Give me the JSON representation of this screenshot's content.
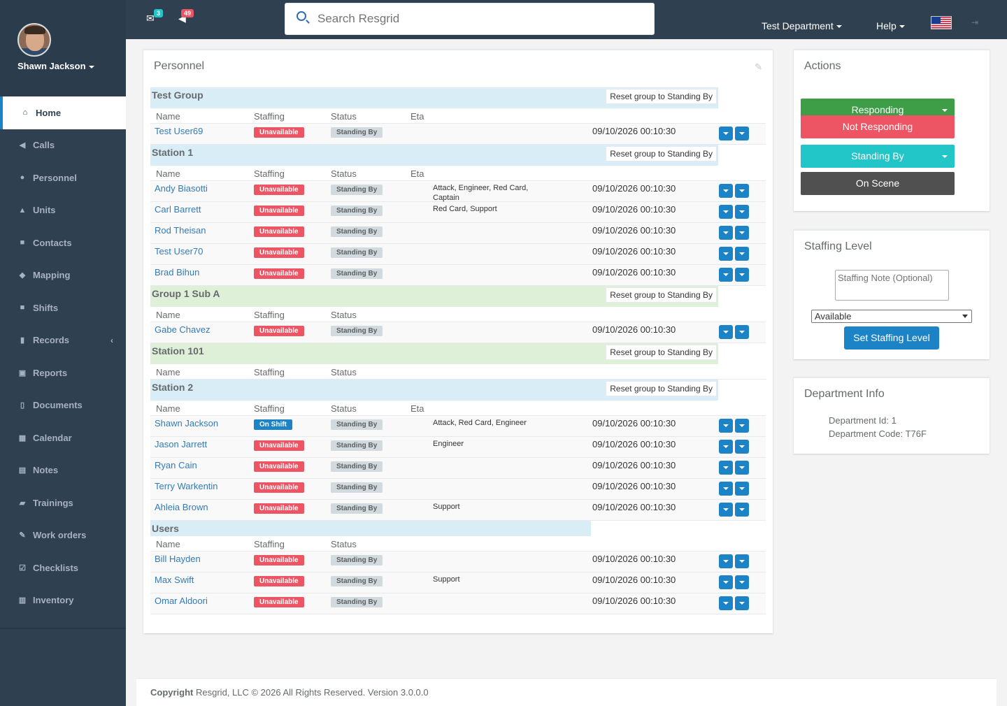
{
  "profile": {
    "name": "Shawn Jackson"
  },
  "nav": [
    {
      "label": "Home",
      "icon": "home-icon",
      "glyph": "⌂"
    },
    {
      "label": "Calls",
      "icon": "bullhorn-icon",
      "glyph": "◀"
    },
    {
      "label": "Personnel",
      "icon": "user-icon",
      "glyph": "●"
    },
    {
      "label": "Units",
      "icon": "truck-icon",
      "glyph": "▲"
    },
    {
      "label": "Contacts",
      "icon": "address-book-icon",
      "glyph": "■"
    },
    {
      "label": "Mapping",
      "icon": "map-marker-icon",
      "glyph": "◆"
    },
    {
      "label": "Shifts",
      "icon": "briefcase-icon",
      "glyph": "■"
    },
    {
      "label": "Records",
      "icon": "file-icon",
      "glyph": "▮"
    },
    {
      "label": "Reports",
      "icon": "report-icon",
      "glyph": "▣"
    },
    {
      "label": "Documents",
      "icon": "document-icon",
      "glyph": "▯"
    },
    {
      "label": "Calendar",
      "icon": "calendar-icon",
      "glyph": "▦"
    },
    {
      "label": "Notes",
      "icon": "notes-icon",
      "glyph": "▤"
    },
    {
      "label": "Trainings",
      "icon": "book-icon",
      "glyph": "▰"
    },
    {
      "label": "Work orders",
      "icon": "wrench-icon",
      "glyph": "✎"
    },
    {
      "label": "Checklists",
      "icon": "checklist-icon",
      "glyph": "☑"
    },
    {
      "label": "Inventory",
      "icon": "barcode-icon",
      "glyph": "▥"
    }
  ],
  "topbar": {
    "mail_count": "3",
    "alert_count": "49",
    "search_placeholder": "Search Resgrid",
    "department": "Test Department",
    "help": "Help"
  },
  "personnel": {
    "title": "Personnel",
    "reset_label": "Reset group to Standing By",
    "col_name": "Name",
    "col_staffing": "Staffing",
    "col_status": "Status",
    "col_eta": "Eta",
    "groups": [
      {
        "name": "Test Group",
        "eta": true,
        "members": [
          {
            "name": "Test User69",
            "staffing": "Unavailable",
            "status": "Standing By",
            "eta": "",
            "time": "09/10/2026 00:10:30"
          }
        ]
      },
      {
        "name": "Station 1",
        "eta": true,
        "members": [
          {
            "name": "Andy Biasotti",
            "staffing": "Unavailable",
            "status": "Standing By",
            "eta": "Attack, Engineer, Red Card, Captain",
            "time": "09/10/2026 00:10:30"
          },
          {
            "name": "Carl Barrett",
            "staffing": "Unavailable",
            "status": "Standing By",
            "eta": "Red Card, Support",
            "time": "09/10/2026 00:10:30"
          },
          {
            "name": "Rod Theisan",
            "staffing": "Unavailable",
            "status": "Standing By",
            "eta": "",
            "time": "09/10/2026 00:10:30"
          },
          {
            "name": "Test User70",
            "staffing": "Unavailable",
            "status": "Standing By",
            "eta": "",
            "time": "09/10/2026 00:10:30"
          },
          {
            "name": "Brad Bihun",
            "staffing": "Unavailable",
            "status": "Standing By",
            "eta": "",
            "time": "09/10/2026 00:10:30"
          }
        ]
      },
      {
        "name": "Group 1 Sub A",
        "eta": false,
        "members": [
          {
            "name": "Gabe Chavez",
            "staffing": "Unavailable",
            "status": "Standing By",
            "eta": "",
            "time": "09/10/2026 00:10:30"
          }
        ]
      },
      {
        "name": "Station 101",
        "eta": false,
        "members": []
      },
      {
        "name": "Station 2",
        "eta": true,
        "members": [
          {
            "name": "Shawn Jackson",
            "staffing": "On Shift",
            "status": "Standing By",
            "eta": "Attack, Red Card, Engineer",
            "time": "09/10/2026 00:10:30"
          },
          {
            "name": "Jason Jarrett",
            "staffing": "Unavailable",
            "status": "Standing By",
            "eta": "Engineer",
            "time": "09/10/2026 00:10:30"
          },
          {
            "name": "Ryan Cain",
            "staffing": "Unavailable",
            "status": "Standing By",
            "eta": "",
            "time": "09/10/2026 00:10:30"
          },
          {
            "name": "Terry Warkentin",
            "staffing": "Unavailable",
            "status": "Standing By",
            "eta": "",
            "time": "09/10/2026 00:10:30"
          },
          {
            "name": "Ahleia Brown",
            "staffing": "Unavailable",
            "status": "Standing By",
            "eta": "Support",
            "time": "09/10/2026 00:10:30"
          }
        ]
      },
      {
        "name": "Users",
        "eta": false,
        "members": [
          {
            "name": "Bill Hayden",
            "staffing": "Unavailable",
            "status": "Standing By",
            "eta": "",
            "time": "09/10/2026 00:10:30"
          },
          {
            "name": "Max Swift",
            "staffing": "Unavailable",
            "status": "Standing By",
            "eta": "Support",
            "time": "09/10/2026 00:10:30"
          },
          {
            "name": "Omar Aldoori",
            "staffing": "Unavailable",
            "status": "Standing By",
            "eta": "",
            "time": "09/10/2026 00:10:30"
          }
        ]
      }
    ]
  },
  "actions": {
    "title": "Actions",
    "buttons": [
      {
        "label": "Responding",
        "color": "#3e9e47",
        "dropdown": true
      },
      {
        "label": "Not Responding",
        "color": "#ed5565",
        "dropdown": false
      },
      {
        "label": "Standing By",
        "color": "#23c6c8",
        "dropdown": true
      },
      {
        "label": "On Scene",
        "color": "#505050",
        "dropdown": false
      }
    ]
  },
  "staffing": {
    "title": "Staffing Level",
    "note_placeholder": "Staffing Note (Optional)",
    "selected": "Available",
    "button": "Set Staffing Level"
  },
  "dept": {
    "title": "Department Info",
    "id_line": "Department Id: 1",
    "code_line": "Department Code: T76F"
  },
  "footer": {
    "copyright": "Copyright",
    "text": " Resgrid, LLC © 2026 All Rights Reserved.",
    "version": " Version 3.0.0.0"
  },
  "colors": {
    "sidebar": "#2f4050",
    "accent": "#1c84c6",
    "danger": "#ed5565"
  }
}
